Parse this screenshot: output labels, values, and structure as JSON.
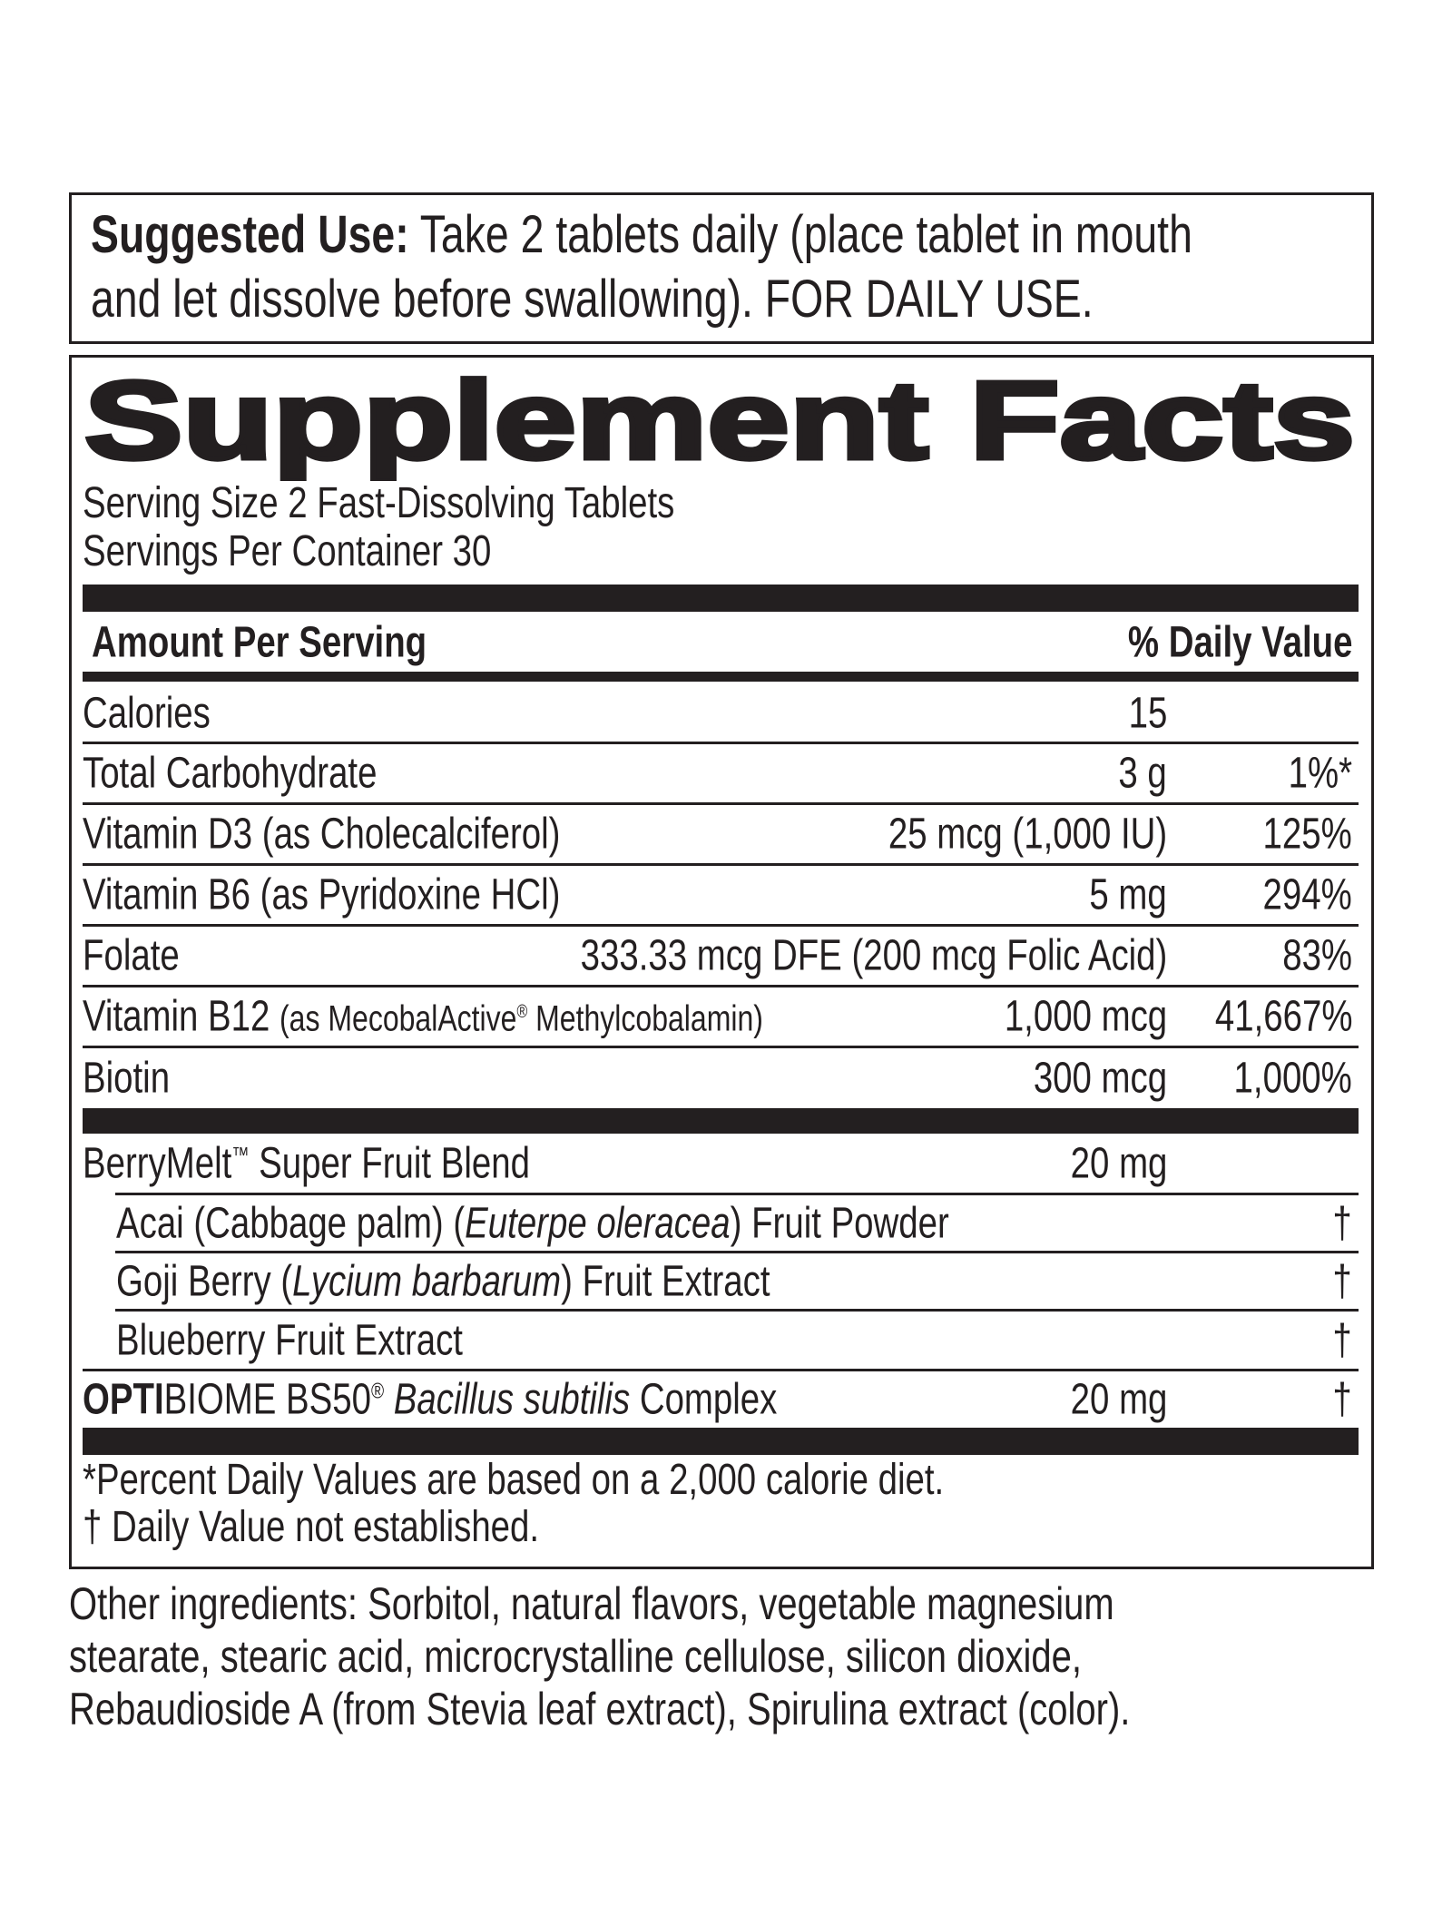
{
  "suggested_use": {
    "label": "Suggested Use:",
    "line1": "Take 2 tablets daily (place tablet in mouth",
    "line2": "and let dissolve before swallowing). FOR DAILY USE."
  },
  "facts": {
    "title": "Supplement Facts",
    "serving_size": "Serving Size 2 Fast-Dissolving Tablets",
    "servings_per_container": "Servings Per Container 30",
    "header_amount": "Amount Per Serving",
    "header_dv": "% Daily Value",
    "nutrients": [
      {
        "name": "Calories",
        "amount": "15",
        "dv": ""
      },
      {
        "name": "Total Carbohydrate",
        "amount": "3 g",
        "dv": "1%*"
      },
      {
        "name": "Vitamin D3 (as Cholecalciferol)",
        "amount": "25 mcg (1,000 IU)",
        "dv": "125%"
      },
      {
        "name": "Vitamin B6 (as Pyridoxine HCl)",
        "amount": "5 mg",
        "dv": "294%"
      },
      {
        "name": "Folate",
        "amount": "333.33 mcg DFE (200 mcg Folic Acid)",
        "dv": "83%"
      },
      {
        "name": "Vitamin B12",
        "name_detail": "(as MecobalActive",
        "name_detail_mark": "®",
        "name_detail_end": " Methylcobalamin)",
        "amount": "1,000 mcg",
        "dv": "41,667%"
      },
      {
        "name": "Biotin",
        "amount": "300 mcg",
        "dv": "1,000%"
      }
    ],
    "blend": {
      "name": "BerryMelt",
      "mark": "™",
      "name_end": " Super Fruit Blend",
      "amount": "20 mg",
      "items": [
        {
          "pre": "Acai (Cabbage palm) (",
          "italic": "Euterpe oleracea",
          "post": ") Fruit Powder",
          "dv": "†"
        },
        {
          "pre": "Goji Berry (",
          "italic": "Lycium barbarum",
          "post": ") Fruit Extract",
          "dv": "†"
        },
        {
          "pre": "Blueberry Fruit Extract",
          "italic": "",
          "post": "",
          "dv": "†"
        }
      ]
    },
    "optibiome": {
      "bold": "OPTI",
      "name": "BIOME BS50",
      "mark": "®",
      "italic": " Bacillus subtilis",
      "post": " Complex",
      "amount": "20 mg",
      "dv": "†"
    },
    "footnote1": "*Percent Daily Values are based on a 2,000 calorie diet.",
    "footnote2": "† Daily Value not established."
  },
  "other_ingredients": {
    "line1": "Other ingredients: Sorbitol, natural flavors, vegetable magnesium",
    "line2": "stearate, stearic acid, microcrystalline cellulose, silicon dioxide,",
    "line3": "Rebaudioside A (from Stevia leaf extract), Spirulina extract (color)."
  }
}
